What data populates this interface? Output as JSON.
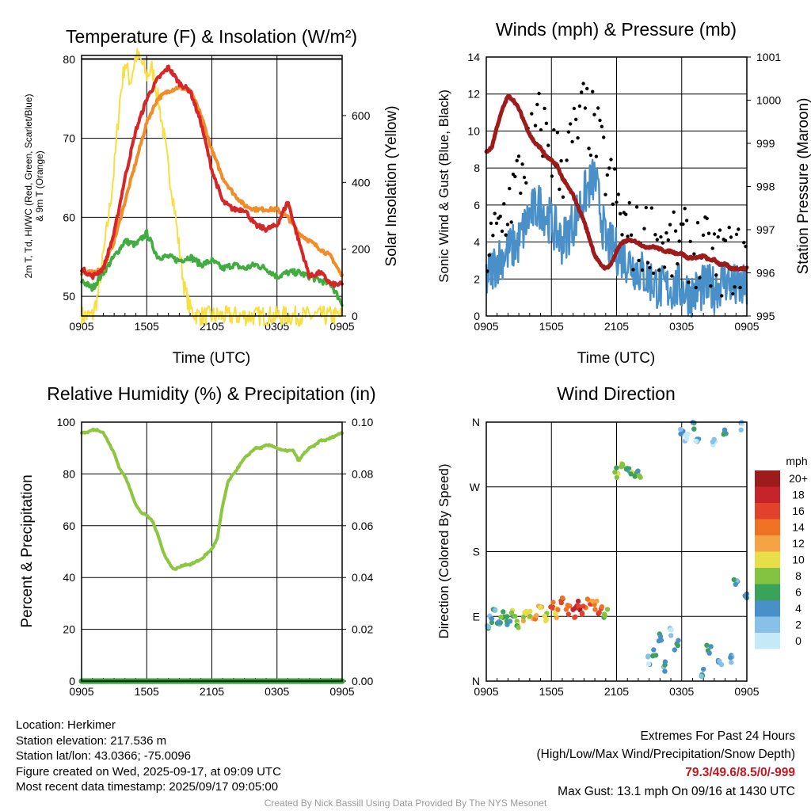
{
  "colors": {
    "red": "#d62728",
    "orange": "#f28c28",
    "green": "#3fae3f",
    "yellow": "#f9de3f",
    "blue": "#4a90c8",
    "black": "#000000",
    "maroon": "#9e1b1b",
    "humidity": "#8dc63f",
    "precip": "#2e9e2e",
    "speed_bins": [
      "#c6e9f7",
      "#87c1e7",
      "#4a90c8",
      "#3aa35a",
      "#82c341",
      "#e8df48",
      "#f6a443",
      "#f07325",
      "#e2412c",
      "#c7232a",
      "#9e1b1b"
    ]
  },
  "panels": {
    "temperature": {
      "title": "Temperature (F) & Insolation (W/m²)",
      "xlabel": "Time (UTC)",
      "ylabel_lines": [
        "2m T, T",
        "d",
        ", HI/WC (Red, Green, Scarlet/Blue)",
        "& 9m T (Orange)"
      ],
      "y2label": "Solar Insolation (Yellow)",
      "x_ticks": [
        "0905",
        "1505",
        "2105",
        "0305",
        "0905"
      ],
      "y_ticks": [
        "50",
        "60",
        "70",
        "80"
      ],
      "y2_ticks": [
        "0",
        "200",
        "400",
        "600"
      ]
    },
    "winds": {
      "title": "Winds (mph) & Pressure (mb)",
      "xlabel": "Time (UTC)",
      "ylabel": "Sonic Wind & Gust (Blue, Black)",
      "y2label": "Station Pressure (Maroon)",
      "x_ticks": [
        "0905",
        "1505",
        "2105",
        "0305",
        "0905"
      ],
      "y_ticks": [
        "0",
        "2",
        "4",
        "6",
        "8",
        "10",
        "12",
        "14"
      ],
      "y2_ticks": [
        "995",
        "996",
        "997",
        "998",
        "999",
        "1000",
        "1001"
      ]
    },
    "humidity": {
      "title": "Relative Humidity (%) & Precipitation (in)",
      "ylabel": "Percent & Precipitation",
      "x_ticks": [
        "0905",
        "1505",
        "2105",
        "0305",
        "0905"
      ],
      "y_ticks": [
        "0",
        "20",
        "40",
        "60",
        "80",
        "100"
      ],
      "y2_ticks": [
        "0.00",
        "0.02",
        "0.04",
        "0.06",
        "0.08",
        "0.10"
      ]
    },
    "direction": {
      "title": "Wind Direction",
      "ylabel": "Direction (Colored By Speed)",
      "x_ticks": [
        "0905",
        "1505",
        "2105",
        "0305",
        "0905"
      ],
      "y_ticks": [
        "N",
        "E",
        "S",
        "W",
        "N"
      ],
      "legend_title": "mph",
      "legend_labels": [
        "0",
        "2",
        "4",
        "6",
        "8",
        "10",
        "12",
        "14",
        "16",
        "18",
        "20+"
      ]
    }
  },
  "chart_data": [
    {
      "type": "line",
      "title": "Temperature (F) & Insolation (W/m²)",
      "xlabel": "Time (UTC)",
      "ylim": [
        47.5,
        80.5
      ],
      "y2lim": [
        0,
        780
      ],
      "x_unit": "hours since 0905 UTC 09/16",
      "series": [
        {
          "name": "2m T (Red)",
          "axis": "left",
          "x": [
            0,
            1,
            2,
            3,
            4,
            5,
            6,
            7,
            8,
            9,
            10,
            11,
            12,
            13,
            14,
            15,
            16,
            17,
            18,
            19,
            20,
            21,
            22,
            23,
            24
          ],
          "y": [
            53.5,
            52.5,
            53.5,
            58,
            65,
            71,
            75,
            77.5,
            79,
            77,
            76,
            72,
            66,
            62,
            61,
            61,
            59,
            58.5,
            59,
            62,
            57,
            52.5,
            53,
            51.5,
            51.5
          ]
        },
        {
          "name": "9m T (Orange)",
          "axis": "left",
          "x": [
            0,
            1,
            2,
            3,
            4,
            5,
            6,
            7,
            8,
            9,
            10,
            11,
            12,
            13,
            14,
            15,
            16,
            17,
            18,
            19,
            20,
            21,
            22,
            23,
            24
          ],
          "y": [
            53,
            53,
            53.5,
            57,
            62,
            67,
            72,
            75,
            76,
            76.5,
            76,
            73,
            68.5,
            65,
            63,
            61.5,
            61,
            61,
            61,
            60,
            58,
            57,
            56,
            55,
            52.5
          ]
        },
        {
          "name": "Td (Green)",
          "axis": "left",
          "x": [
            0,
            1,
            2,
            3,
            4,
            5,
            6,
            7,
            8,
            9,
            10,
            11,
            12,
            13,
            14,
            15,
            16,
            17,
            18,
            19,
            20,
            21,
            22,
            23,
            24
          ],
          "y": [
            52,
            51,
            53,
            55,
            57,
            56.5,
            58,
            55,
            55,
            54.5,
            55,
            54,
            54.5,
            53.5,
            54,
            53.5,
            54,
            53.5,
            52.5,
            53,
            53,
            52.5,
            52,
            51.5,
            49
          ]
        },
        {
          "name": "Solar Insolation (Yellow)",
          "axis": "right",
          "x": [
            0,
            1,
            1.5,
            2,
            2.5,
            3,
            3.5,
            4,
            4.5,
            5,
            5.5,
            6,
            6.5,
            7,
            7.5,
            8,
            8.5,
            9,
            9.5,
            10,
            10.5,
            11,
            12,
            24
          ],
          "y": [
            0,
            0,
            60,
            180,
            300,
            440,
            640,
            760,
            700,
            780,
            760,
            720,
            740,
            660,
            560,
            440,
            340,
            200,
            80,
            20,
            5,
            0,
            0,
            0
          ]
        }
      ]
    },
    {
      "type": "line",
      "title": "Winds (mph) & Pressure (mb)",
      "xlabel": "Time (UTC)",
      "ylim": [
        0,
        14
      ],
      "y2lim": [
        995,
        1001
      ],
      "x_unit": "hours since 0905 UTC 09/16",
      "series": [
        {
          "name": "Sonic Wind (Blue)",
          "axis": "left",
          "x": [
            0,
            1,
            2,
            3,
            4,
            5,
            6,
            7,
            8,
            9,
            10,
            11,
            12,
            13,
            14,
            15,
            16,
            17,
            18,
            19,
            20,
            21,
            22,
            23,
            24
          ],
          "y": [
            2,
            3,
            3.5,
            4,
            5.5,
            6,
            5,
            4,
            5,
            6.5,
            7.5,
            4,
            3.5,
            3,
            2.5,
            2,
            1.5,
            1.5,
            1.5,
            1.2,
            1.5,
            1.5,
            2,
            1.5,
            1.5
          ]
        },
        {
          "name": "Gust (Black)",
          "axis": "left",
          "x": [
            0,
            1,
            2,
            3,
            4,
            5,
            6,
            7,
            8,
            9,
            10,
            11,
            12,
            13,
            14,
            15,
            16,
            17,
            18,
            19,
            20,
            21,
            22,
            23,
            24
          ],
          "y": [
            3,
            4.5,
            6,
            7.5,
            9,
            10.5,
            9,
            8,
            9.5,
            11,
            10,
            8,
            6,
            4.5,
            4,
            4.5,
            4,
            3.5,
            4,
            3.5,
            3.5,
            3,
            3,
            3,
            3.5
          ]
        },
        {
          "name": "Station Pressure (Maroon)",
          "axis": "right",
          "x": [
            0,
            0.5,
            1,
            1.5,
            2,
            2.5,
            3,
            3.5,
            4,
            4.5,
            5,
            5.5,
            6,
            6.5,
            7,
            7.5,
            8,
            8.5,
            9,
            9.5,
            10,
            10.5,
            11,
            11.5,
            12,
            12.5,
            13,
            13.5,
            14,
            14.5,
            15,
            15.5,
            16,
            16.5,
            17,
            17.5,
            18,
            18.5,
            19,
            19.5,
            20,
            20.5,
            21,
            21.5,
            22,
            22.5,
            23,
            23.5,
            24
          ],
          "y": [
            998.8,
            998.9,
            999.4,
            999.8,
            1000.1,
            1000.0,
            999.8,
            999.5,
            999.2,
            999.0,
            998.9,
            998.7,
            998.6,
            998.5,
            998.2,
            998.0,
            997.8,
            997.5,
            997.2,
            996.8,
            996.4,
            996.2,
            996.1,
            996.2,
            996.5,
            996.7,
            996.75,
            996.75,
            996.7,
            996.6,
            996.6,
            996.6,
            996.55,
            996.5,
            996.5,
            996.45,
            996.45,
            996.35,
            996.35,
            996.35,
            996.4,
            996.3,
            996.3,
            996.2,
            996.2,
            996.1,
            996.1,
            996.1,
            996.1
          ]
        }
      ]
    },
    {
      "type": "line",
      "title": "Relative Humidity (%) & Precipitation (in)",
      "ylabel": "Percent & Precipitation",
      "ylim": [
        0,
        100
      ],
      "y2lim": [
        0,
        0.1
      ],
      "x_unit": "hours since 0905 UTC 09/16",
      "series": [
        {
          "name": "Relative Humidity",
          "axis": "left",
          "x": [
            0,
            0.5,
            1,
            1.5,
            2,
            2.5,
            3,
            3.5,
            4,
            4.5,
            5,
            5.5,
            6,
            6.5,
            7,
            7.5,
            8,
            8.5,
            9,
            9.5,
            10,
            10.5,
            11,
            11.5,
            12,
            12.5,
            13,
            13.5,
            14,
            14.5,
            15,
            15.5,
            16,
            16.5,
            17,
            17.5,
            18,
            18.5,
            19,
            19.5,
            20,
            20.5,
            21,
            21.5,
            22,
            22.5,
            23,
            23.5,
            24
          ],
          "y": [
            96,
            96,
            97,
            97,
            96,
            92,
            88,
            82,
            79,
            74,
            68,
            65,
            64,
            62,
            57,
            50,
            46,
            43,
            44,
            45,
            45,
            46,
            47,
            49,
            51,
            55,
            68,
            77,
            80,
            83,
            86,
            88,
            90,
            90,
            91,
            91,
            90,
            89,
            89,
            89,
            85,
            88,
            90,
            91,
            93,
            93,
            94,
            95,
            96
          ]
        },
        {
          "name": "Precipitation",
          "axis": "right",
          "x": [
            0,
            24
          ],
          "y": [
            0,
            0
          ]
        }
      ]
    },
    {
      "type": "scatter",
      "title": "Wind Direction",
      "ylabel": "Direction (Colored By Speed)",
      "x_unit": "hours since 0905 UTC 09/16",
      "y_unit": "degrees (0=N, 90=E, 180=S, 270=W, 360=N)",
      "ylim": [
        0,
        360
      ],
      "points": [
        [
          0.2,
          75,
          2
        ],
        [
          0.5,
          85,
          2
        ],
        [
          0.8,
          100,
          2
        ],
        [
          1.2,
          80,
          2
        ],
        [
          1.5,
          90,
          3
        ],
        [
          2,
          85,
          3
        ],
        [
          2.5,
          95,
          4
        ],
        [
          3,
          80,
          4
        ],
        [
          3.5,
          90,
          5
        ],
        [
          4,
          95,
          5
        ],
        [
          4.5,
          85,
          6
        ],
        [
          5,
          100,
          6
        ],
        [
          5.5,
          90,
          5
        ],
        [
          6,
          105,
          7
        ],
        [
          6.5,
          95,
          6
        ],
        [
          7,
          110,
          8
        ],
        [
          7.5,
          100,
          7
        ],
        [
          8,
          95,
          8
        ],
        [
          8.5,
          105,
          9
        ],
        [
          9,
          100,
          8
        ],
        [
          9.5,
          110,
          7
        ],
        [
          10,
          105,
          6
        ],
        [
          10.5,
          100,
          8
        ],
        [
          11,
          95,
          4
        ],
        [
          12,
          290,
          4
        ],
        [
          12.5,
          300,
          4
        ],
        [
          13,
          295,
          3
        ],
        [
          13.5,
          285,
          4
        ],
        [
          14,
          290,
          3
        ],
        [
          15,
          30,
          1
        ],
        [
          15.5,
          40,
          2
        ],
        [
          16,
          60,
          3
        ],
        [
          16.5,
          20,
          2
        ],
        [
          17,
          70,
          1
        ],
        [
          17.5,
          50,
          2
        ],
        [
          18,
          350,
          1
        ],
        [
          18.5,
          340,
          1
        ],
        [
          19,
          355,
          2
        ],
        [
          19.5,
          330,
          1
        ],
        [
          20,
          10,
          2
        ],
        [
          20.5,
          45,
          2
        ],
        [
          21,
          335,
          1
        ],
        [
          21.5,
          25,
          2
        ],
        [
          22,
          350,
          2
        ],
        [
          22.5,
          30,
          1
        ],
        [
          23,
          140,
          2
        ],
        [
          23.5,
          355,
          1
        ],
        [
          24,
          120,
          2
        ]
      ]
    }
  ],
  "footer": {
    "location": "Location: Herkimer",
    "elevation": "Station elevation: 217.536 m",
    "latlon": "Station lat/lon: 43.0366; -75.0096",
    "created": "Figure created on Wed, 2025-09-17, at 09:09 UTC",
    "recent": "Most recent data timestamp: 2025/09/17 09:05:00",
    "extremes_title": "Extremes For Past 24 Hours",
    "extremes_labels": "(High/Low/Max Wind/Precipitation/Snow Depth)",
    "extremes_values": "79.3/49.6/8.5/0/-999",
    "max_gust": "Max Gust: 13.1 mph On 09/16 at 1430 UTC",
    "credit": "Created By Nick Bassill Using Data Provided By The NYS Mesonet"
  }
}
